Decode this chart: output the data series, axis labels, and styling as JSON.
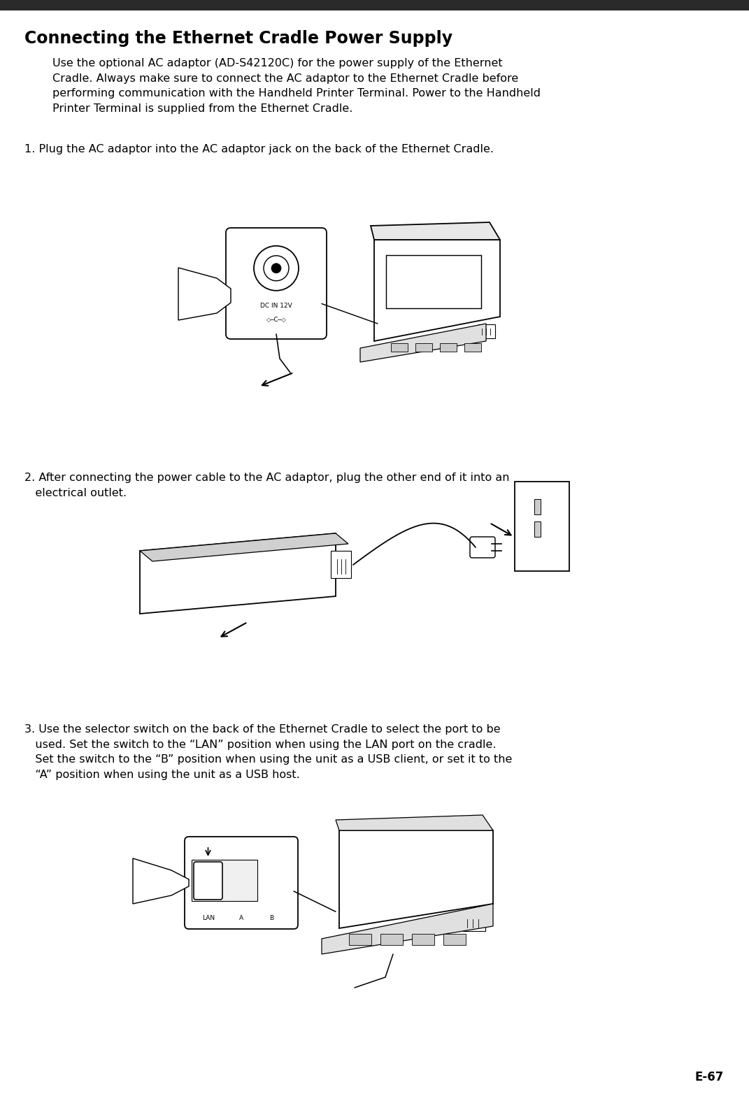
{
  "page_label": "E-67",
  "top_bar_color": "#2a2a2a",
  "background_color": "#ffffff",
  "title": "Connecting the Ethernet Cradle Power Supply",
  "title_fontsize": 17,
  "body_fontsize": 11.5,
  "body_color": "#000000",
  "paragraph_text": "Use the optional AC adaptor (AD-S42120C) for the power supply of the Ethernet\nCradle. Always make sure to connect the AC adaptor to the Ethernet Cradle before\nperforming communication with the Handheld Printer Terminal. Power to the Handheld\nPrinter Terminal is supplied from the Ethernet Cradle.",
  "step1_text": "1. Plug the AC adaptor into the AC adaptor jack on the back of the Ethernet Cradle.",
  "step2_text": "2. After connecting the power cable to the AC adaptor, plug the other end of it into an\n   electrical outlet.",
  "step3_text": "3. Use the selector switch on the back of the Ethernet Cradle to select the port to be\n   used. Set the switch to the “LAN” position when using the LAN port on the cradle.\n   Set the switch to the “B” position when using the unit as a USB client, or set it to the\n   “A” position when using the unit as a USB host.",
  "page_label_fontsize": 12
}
